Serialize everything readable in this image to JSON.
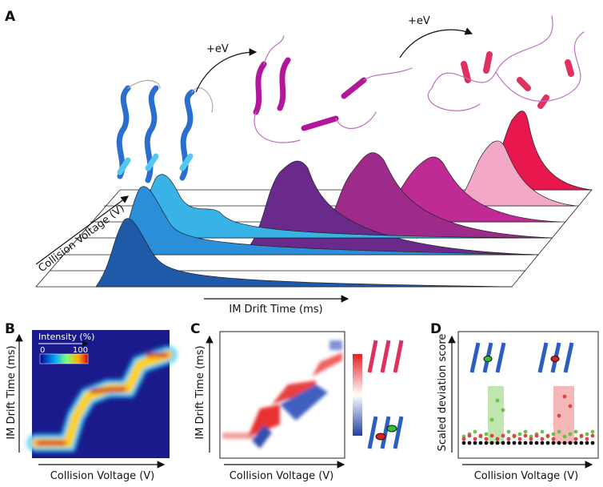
{
  "panel_a": {
    "label": "A",
    "energy_labels": [
      "+eV",
      "+eV"
    ],
    "y_axis_label": "Collision Voltage (V)",
    "x_axis_label": "IM Drift Time (ms)"
  },
  "panel_b": {
    "label": "B",
    "colorbar_title": "Intensity (%)",
    "colorbar_min": "0",
    "colorbar_max": "100",
    "y_axis_label": "IM Drift Time (ms)",
    "x_axis_label": "Collision Voltage (V)"
  },
  "panel_c": {
    "label": "C",
    "y_axis_label": "IM Drift Time (ms)",
    "x_axis_label": "Collision Voltage (V)"
  },
  "panel_d": {
    "label": "D",
    "y_axis_label": "Scaled deviation score",
    "x_axis_label": "Collision Voltage (V)"
  }
}
